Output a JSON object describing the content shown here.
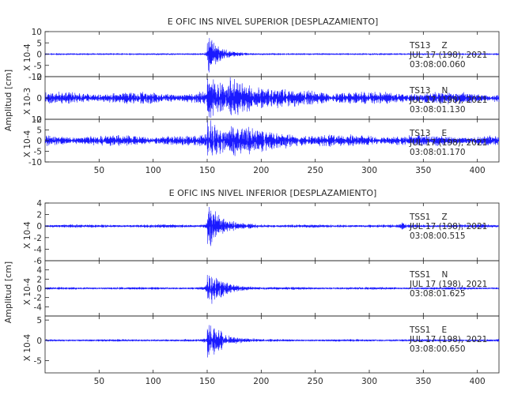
{
  "chart_data": [
    {
      "type": "line",
      "title": "E OFIC INS NIVEL SUPERIOR [DESPLAZAMIENTO]",
      "ylabel": "Amplitud [cm]",
      "xlim": [
        0,
        420
      ],
      "x_ticks": [
        50,
        100,
        150,
        200,
        250,
        300,
        350,
        400
      ],
      "color": "#1a1aff",
      "panels": [
        {
          "id": "sup-z",
          "scale_label": "X 10-4",
          "ylim": [
            -10,
            10
          ],
          "y_ticks": [
            10,
            5,
            0,
            -5,
            -10
          ],
          "station": "TS13",
          "component": "Z",
          "date": "JUL 17 (198), 2021",
          "time": "03:08:00.060",
          "background_amplitude": 0.35,
          "events": [
            {
              "x": 150,
              "amp": 9.5,
              "decay": 10
            }
          ]
        },
        {
          "id": "sup-n",
          "scale_label": "X 10-3",
          "ylim": [
            -2,
            2
          ],
          "y_ticks": [
            2,
            0,
            -2
          ],
          "station": "TS13",
          "component": "N",
          "date": "JUL 17 (198), 2021",
          "time": "03:08:01.130",
          "background_amplitude": 0.55,
          "events": [
            {
              "x": 150,
              "amp": 2.0,
              "decay": 14
            },
            {
              "x": 170,
              "amp": 1.1,
              "decay": 40
            }
          ]
        },
        {
          "id": "sup-e",
          "scale_label": "X 10-4",
          "ylim": [
            -10,
            10
          ],
          "y_ticks": [
            10,
            5,
            0,
            -5,
            -10
          ],
          "station": "TS13",
          "component": "E",
          "date": "JUL 17 (198), 2021",
          "time": "03:08:01.170",
          "background_amplitude": 2.5,
          "events": [
            {
              "x": 150,
              "amp": 10,
              "decay": 14
            },
            {
              "x": 170,
              "amp": 5,
              "decay": 40
            }
          ]
        }
      ]
    },
    {
      "type": "line",
      "title": "E OFIC INS NIVEL INFERIOR [DESPLAZAMIENTO]",
      "ylabel": "Amplitud [cm]",
      "xlim": [
        0,
        420
      ],
      "x_ticks": [
        50,
        100,
        150,
        200,
        250,
        300,
        350,
        400
      ],
      "color": "#1a1aff",
      "panels": [
        {
          "id": "inf-z",
          "scale_label": "X 10-4",
          "ylim": [
            -6,
            4
          ],
          "y_ticks": [
            4,
            2,
            0,
            -2,
            -4,
            -6
          ],
          "station": "TSS1",
          "component": "Z",
          "date": "JUL 17 (198), 2021",
          "time": "03:08:00.515",
          "background_amplitude": 0.3,
          "events": [
            {
              "x": 150,
              "amp": 4,
              "decay": 12
            },
            {
              "x": 330,
              "amp": 0.8,
              "decay": 2
            }
          ]
        },
        {
          "id": "inf-n",
          "scale_label": "X 10-4",
          "ylim": [
            -6,
            6
          ],
          "y_ticks": [
            4,
            2,
            0,
            -2,
            -4
          ],
          "station": "TSS1",
          "component": "N",
          "date": "JUL 17 (198), 2021",
          "time": "03:08:01.625",
          "background_amplitude": 0.3,
          "events": [
            {
              "x": 150,
              "amp": 5,
              "decay": 12
            }
          ]
        },
        {
          "id": "inf-e",
          "scale_label": "X 10-4",
          "ylim": [
            -8,
            6
          ],
          "y_ticks": [
            5,
            0,
            -5
          ],
          "station": "TSS1",
          "component": "E",
          "date": "JUL 17 (198), 2021",
          "time": "03:08:00.650",
          "background_amplitude": 0.3,
          "events": [
            {
              "x": 150,
              "amp": 6,
              "decay": 12
            }
          ]
        }
      ]
    }
  ]
}
